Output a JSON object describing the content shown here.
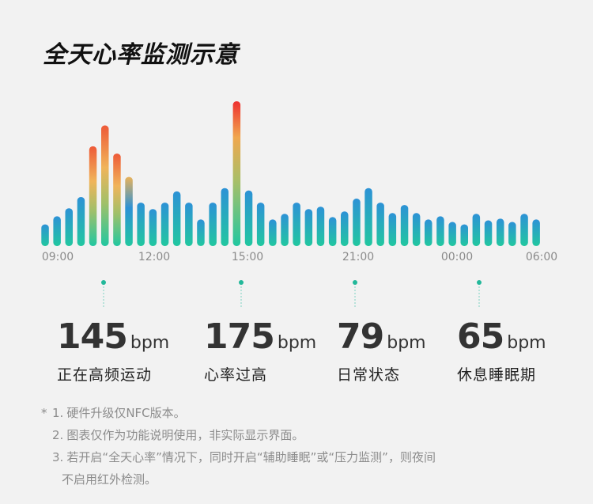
{
  "title": "全天心率监测示意",
  "chart_data": {
    "type": "bar",
    "title": "全天心率监测示意",
    "ylabel": "",
    "xlabel": "",
    "x_ticks": [
      "09:00",
      "12:00",
      "15:00",
      "21:00",
      "00:00",
      "06:00"
    ],
    "ylim": [
      0,
      180
    ],
    "values": [
      27,
      37,
      47,
      61,
      124,
      150,
      115,
      86,
      54,
      46,
      54,
      68,
      54,
      33,
      54,
      72,
      180,
      69,
      54,
      33,
      40,
      54,
      46,
      49,
      36,
      43,
      59,
      72,
      54,
      41,
      51,
      41,
      33,
      37,
      30,
      27,
      40,
      32,
      34,
      30,
      40,
      33
    ],
    "grid": false,
    "colors": {
      "low": "#20c4a4",
      "mid": "#2d93d4",
      "high_mid": "#f0b45a",
      "peak": "#ee3c32"
    }
  },
  "stats": [
    {
      "value": "145",
      "unit": "bpm",
      "label": "正在高频运动"
    },
    {
      "value": "175",
      "unit": "bpm",
      "label": "心率过高"
    },
    {
      "value": "79",
      "unit": "bpm",
      "label": "日常状态"
    },
    {
      "value": "65",
      "unit": "bpm",
      "label": "休息睡眠期"
    }
  ],
  "notes": {
    "star": "*",
    "items": [
      {
        "index": "1.",
        "text": "硬件升级仅NFC版本。"
      },
      {
        "index": "2.",
        "text": "图表仅作为功能说明使用，非实际显示界面。"
      },
      {
        "index": "3.",
        "text": "若开启“全天心率”情况下，同时开启“辅助睡眠”或“压力监测”，则夜间"
      }
    ],
    "continuation": "不启用红外检测。"
  }
}
